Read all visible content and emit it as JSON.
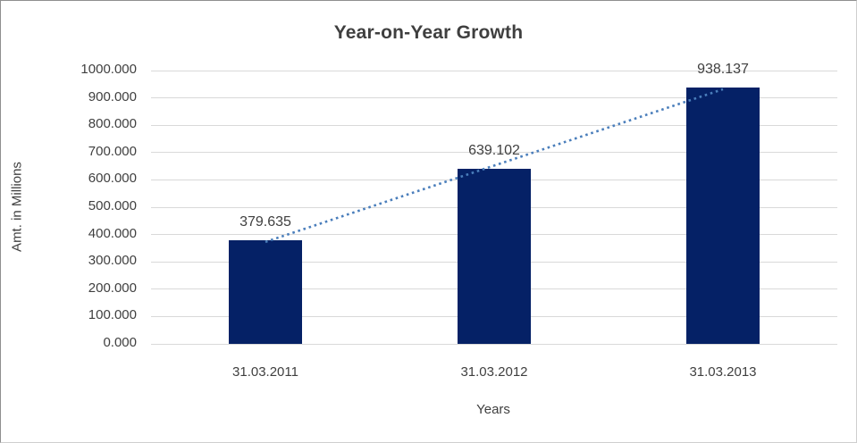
{
  "chart_data": {
    "type": "bar",
    "title": "Year-on-Year Growth",
    "xlabel": "Years",
    "ylabel": "Amt. in Millions",
    "categories": [
      "31.03.2011",
      "31.03.2012",
      "31.03.2013"
    ],
    "values": [
      379.635,
      639.102,
      938.137
    ],
    "data_labels": [
      "379.635",
      "639.102",
      "938.137"
    ],
    "ylim": [
      0,
      1000
    ],
    "ytick_step": 100,
    "ytick_labels": [
      "0.000",
      "100.000",
      "200.000",
      "300.000",
      "400.000",
      "500.000",
      "600.000",
      "700.000",
      "800.000",
      "900.000",
      "1000.000"
    ],
    "grid": "horizontal",
    "legend": "none",
    "trendline": {
      "type": "linear",
      "style": "dotted"
    },
    "colors": {
      "bar": "#052166",
      "trendline": "#4a7ebb",
      "gridline": "#d9d9d9",
      "text": "#3f3f3f",
      "background": "#ffffff"
    }
  }
}
